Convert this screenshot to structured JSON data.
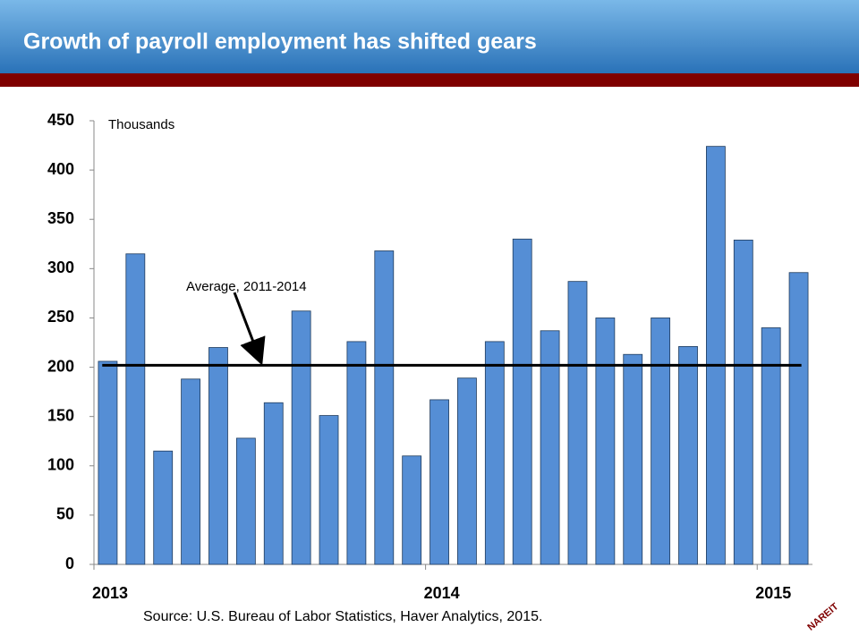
{
  "chart_data": {
    "type": "bar",
    "title": "Growth of payroll employment has shifted gears",
    "unit_label": "Thousands",
    "source": "Source: U.S. Bureau of Labor Statistics, Haver Analytics, 2015.",
    "annotation": "Average, 2011-2014",
    "average": 202,
    "logo": "NAREIT",
    "categories": [
      "2013",
      null,
      null,
      null,
      null,
      null,
      null,
      null,
      null,
      null,
      null,
      null,
      "2014",
      null,
      null,
      null,
      null,
      null,
      null,
      null,
      null,
      null,
      null,
      null,
      "2015",
      null
    ],
    "values": [
      206,
      315,
      115,
      188,
      220,
      128,
      164,
      257,
      151,
      226,
      318,
      110,
      167,
      189,
      226,
      330,
      237,
      287,
      250,
      213,
      250,
      221,
      424,
      329,
      240,
      296
    ],
    "color": "#558ed5",
    "ylim": [
      0,
      450
    ],
    "yticks": [
      0,
      50,
      100,
      150,
      200,
      250,
      300,
      350,
      400,
      450
    ]
  }
}
